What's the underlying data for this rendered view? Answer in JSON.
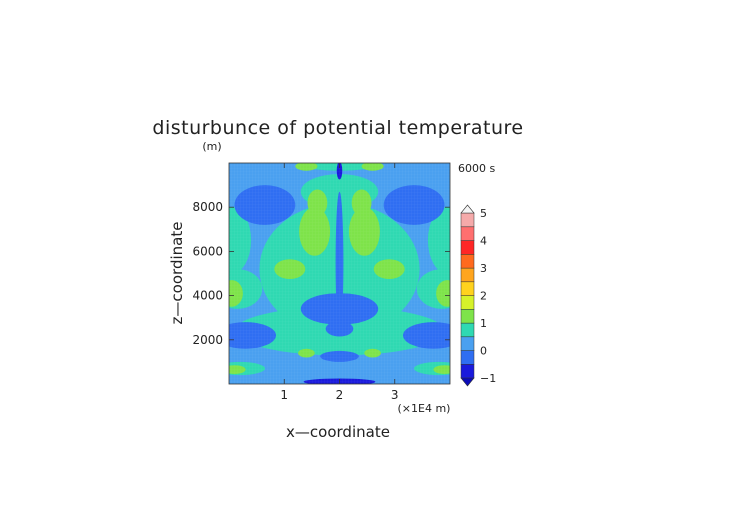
{
  "chart_data": {
    "type": "heatmap",
    "title": "disturbunce of potential temperature",
    "time_label": "6000 s",
    "xlabel": "x—coordinate",
    "ylabel": "z—coordinate",
    "y_unit": "(m)",
    "x_unit": "(×1E4 m)",
    "x_ticks": [
      "1",
      "2",
      "3"
    ],
    "x_tick_values": [
      1,
      2,
      3
    ],
    "xlim": [
      0,
      4
    ],
    "y_ticks": [
      "2000",
      "4000",
      "6000",
      "8000"
    ],
    "y_tick_values": [
      2000,
      4000,
      6000,
      8000
    ],
    "ylim": [
      0,
      10000
    ],
    "colorbar": {
      "levels": [
        -1,
        -0.5,
        0,
        0.5,
        1,
        1.5,
        2,
        2.5,
        3,
        3.5,
        4,
        4.5,
        5
      ],
      "tick_labels": [
        "5",
        "4",
        "3",
        "2",
        "1",
        "0",
        "−1"
      ],
      "tick_values": [
        5,
        4,
        3,
        2,
        1,
        0,
        -1
      ],
      "colors": [
        "#1a1adc",
        "#2f6ef2",
        "#4aa0f0",
        "#2fd9b2",
        "#7ee34a",
        "#d6f22a",
        "#ffd21e",
        "#ffa51e",
        "#ff6a1e",
        "#ff2626",
        "#ff6f6f",
        "#f5aaaa"
      ],
      "over_color": "#f5f5f5"
    },
    "field_description": "symmetric disturbance field about x=2"
  }
}
